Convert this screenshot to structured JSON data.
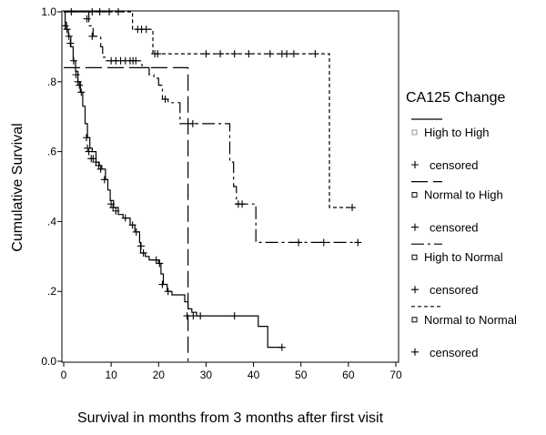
{
  "chart_data": {
    "type": "line",
    "subtype": "kaplan-meier-step",
    "title": "",
    "xlabel": "Survival in months from 3 months after first visit",
    "ylabel": "Cumulative Survival",
    "xlim": [
      0,
      70
    ],
    "ylim": [
      0,
      1
    ],
    "x_ticks": [
      0,
      10,
      20,
      30,
      40,
      50,
      60,
      70
    ],
    "x_tick_labels": [
      "0",
      "10",
      "20",
      "30",
      "40",
      "50",
      "60",
      "70"
    ],
    "y_ticks": [
      0,
      0.2,
      0.4,
      0.6,
      0.8,
      1.0
    ],
    "y_tick_labels": [
      "0.0",
      ".2",
      ".4",
      ".6",
      ".8",
      "1.0"
    ],
    "grid": false,
    "legend": {
      "title": "CA125 Change",
      "placement": "right",
      "entries": [
        {
          "label": "High to High",
          "kind": "line",
          "series": 0
        },
        {
          "label": "censored",
          "kind": "censor",
          "series": 0
        },
        {
          "label": "Normal to High",
          "kind": "line",
          "series": 1
        },
        {
          "label": "censored",
          "kind": "censor",
          "series": 1
        },
        {
          "label": "High to Normal",
          "kind": "line",
          "series": 2
        },
        {
          "label": "censored",
          "kind": "censor",
          "series": 2
        },
        {
          "label": "Normal to Normal",
          "kind": "line",
          "series": 3
        },
        {
          "label": "censored",
          "kind": "censor",
          "series": 3
        }
      ]
    },
    "series": [
      {
        "name": "High to High",
        "dash": "solid",
        "steps": [
          [
            0,
            1.0
          ],
          [
            0.3,
            0.97
          ],
          [
            0.6,
            0.95
          ],
          [
            1.0,
            0.93
          ],
          [
            1.5,
            0.9
          ],
          [
            2.0,
            0.86
          ],
          [
            2.5,
            0.83
          ],
          [
            3.0,
            0.8
          ],
          [
            3.5,
            0.77
          ],
          [
            4.0,
            0.73
          ],
          [
            4.5,
            0.68
          ],
          [
            5.0,
            0.64
          ],
          [
            5.5,
            0.61
          ],
          [
            6.0,
            0.6
          ],
          [
            6.8,
            0.57
          ],
          [
            7.5,
            0.56
          ],
          [
            8.0,
            0.55
          ],
          [
            8.8,
            0.52
          ],
          [
            9.3,
            0.49
          ],
          [
            9.8,
            0.46
          ],
          [
            10.5,
            0.44
          ],
          [
            11.5,
            0.42
          ],
          [
            12.5,
            0.41
          ],
          [
            14.0,
            0.39
          ],
          [
            15.0,
            0.37
          ],
          [
            16.0,
            0.34
          ],
          [
            16.2,
            0.31
          ],
          [
            17.2,
            0.3
          ],
          [
            18.0,
            0.29
          ],
          [
            20.0,
            0.28
          ],
          [
            20.5,
            0.25
          ],
          [
            21.0,
            0.22
          ],
          [
            21.8,
            0.2
          ],
          [
            22.8,
            0.19
          ],
          [
            25.5,
            0.17
          ],
          [
            26.2,
            0.15
          ],
          [
            27.0,
            0.14
          ],
          [
            28.0,
            0.13
          ],
          [
            41.0,
            0.1
          ],
          [
            43.0,
            0.04
          ],
          [
            46.0,
            0.04
          ]
        ],
        "censored": [
          [
            0.3,
            0.96
          ],
          [
            0.7,
            0.95
          ],
          [
            1.1,
            0.93
          ],
          [
            1.4,
            0.91
          ],
          [
            2.1,
            0.86
          ],
          [
            2.6,
            0.82
          ],
          [
            3.0,
            0.8
          ],
          [
            3.3,
            0.79
          ],
          [
            3.7,
            0.77
          ],
          [
            4.8,
            0.64
          ],
          [
            5.0,
            0.61
          ],
          [
            5.3,
            0.6
          ],
          [
            5.8,
            0.58
          ],
          [
            6.2,
            0.58
          ],
          [
            6.8,
            0.57
          ],
          [
            7.4,
            0.56
          ],
          [
            7.8,
            0.55
          ],
          [
            8.6,
            0.52
          ],
          [
            10.0,
            0.45
          ],
          [
            10.4,
            0.44
          ],
          [
            11.0,
            0.43
          ],
          [
            13.0,
            0.41
          ],
          [
            14.5,
            0.39
          ],
          [
            15.3,
            0.37
          ],
          [
            16.3,
            0.33
          ],
          [
            16.8,
            0.31
          ],
          [
            19.5,
            0.29
          ],
          [
            20.2,
            0.28
          ],
          [
            20.8,
            0.22
          ],
          [
            22.0,
            0.2
          ],
          [
            26.0,
            0.13
          ],
          [
            27.3,
            0.13
          ],
          [
            28.8,
            0.13
          ],
          [
            36.0,
            0.13
          ],
          [
            46.0,
            0.04
          ]
        ]
      },
      {
        "name": "Normal to High",
        "dash": "long-dash",
        "steps": [
          [
            0,
            0.84
          ],
          [
            26.2,
            0.84
          ],
          [
            26.2,
            0.0
          ]
        ],
        "censored": []
      },
      {
        "name": "High to Normal",
        "dash": "dash-dot",
        "steps": [
          [
            0,
            1.0
          ],
          [
            5.3,
            0.96
          ],
          [
            6.2,
            0.93
          ],
          [
            7.8,
            0.9
          ],
          [
            8.2,
            0.87
          ],
          [
            9.0,
            0.86
          ],
          [
            15.2,
            0.86
          ],
          [
            16.5,
            0.84
          ],
          [
            18.0,
            0.82
          ],
          [
            19.0,
            0.81
          ],
          [
            20.0,
            0.79
          ],
          [
            20.8,
            0.75
          ],
          [
            22.0,
            0.74
          ],
          [
            24.5,
            0.68
          ],
          [
            26.5,
            0.68
          ],
          [
            34.5,
            0.68
          ],
          [
            35.0,
            0.57
          ],
          [
            35.8,
            0.5
          ],
          [
            36.4,
            0.45
          ],
          [
            38.5,
            0.45
          ],
          [
            40.5,
            0.34
          ],
          [
            62.0,
            0.34
          ]
        ],
        "censored": [
          [
            4.9,
            0.98
          ],
          [
            6.0,
            0.93
          ],
          [
            10.0,
            0.86
          ],
          [
            11.0,
            0.86
          ],
          [
            12.0,
            0.86
          ],
          [
            13.0,
            0.86
          ],
          [
            14.0,
            0.86
          ],
          [
            14.6,
            0.86
          ],
          [
            15.2,
            0.86
          ],
          [
            21.4,
            0.75
          ],
          [
            27.2,
            0.68
          ],
          [
            36.8,
            0.45
          ],
          [
            37.6,
            0.45
          ],
          [
            49.5,
            0.34
          ],
          [
            54.8,
            0.34
          ],
          [
            62.0,
            0.34
          ]
        ]
      },
      {
        "name": "Normal to Normal",
        "dash": "short-dash",
        "steps": [
          [
            0,
            1.0
          ],
          [
            14.5,
            1.0
          ],
          [
            14.5,
            0.95
          ],
          [
            17.6,
            0.95
          ],
          [
            18.8,
            0.88
          ],
          [
            56.0,
            0.88
          ],
          [
            56.0,
            0.44
          ],
          [
            60.8,
            0.44
          ]
        ],
        "censored": [
          [
            1.6,
            1.0
          ],
          [
            6.0,
            1.0
          ],
          [
            7.6,
            1.0
          ],
          [
            9.6,
            1.0
          ],
          [
            11.5,
            1.0
          ],
          [
            15.6,
            0.95
          ],
          [
            16.4,
            0.95
          ],
          [
            17.4,
            0.95
          ],
          [
            19.2,
            0.88
          ],
          [
            19.8,
            0.88
          ],
          [
            30.0,
            0.88
          ],
          [
            33.0,
            0.88
          ],
          [
            36.0,
            0.88
          ],
          [
            39.0,
            0.88
          ],
          [
            43.5,
            0.88
          ],
          [
            46.0,
            0.88
          ],
          [
            47.0,
            0.88
          ],
          [
            48.5,
            0.88
          ],
          [
            53.0,
            0.88
          ],
          [
            60.8,
            0.44
          ]
        ]
      }
    ]
  }
}
